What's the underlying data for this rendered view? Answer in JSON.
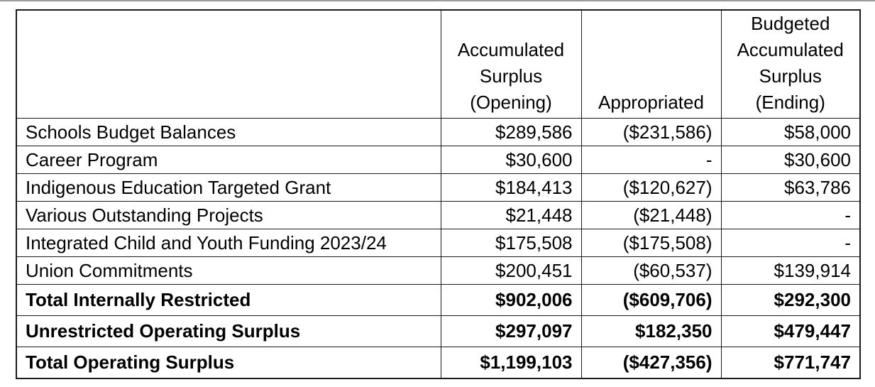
{
  "table": {
    "headers": {
      "label": "",
      "opening": "Accumulated Surplus (Opening)",
      "appropriated": "Appropriated",
      "ending": "Budgeted Accumulated Surplus (Ending)"
    },
    "rows": [
      {
        "label": "Schools Budget Balances",
        "opening": "$289,586",
        "appropriated": "($231,586)",
        "ending": "$58,000"
      },
      {
        "label": "Career Program",
        "opening": "$30,600",
        "appropriated": "-",
        "ending": "$30,600"
      },
      {
        "label": "Indigenous Education Targeted Grant",
        "opening": "$184,413",
        "appropriated": "($120,627)",
        "ending": "$63,786"
      },
      {
        "label": "Various Outstanding Projects",
        "opening": "$21,448",
        "appropriated": "($21,448)",
        "ending": "-"
      },
      {
        "label": "Integrated Child and Youth Funding 2023/24",
        "opening": "$175,508",
        "appropriated": "($175,508)",
        "ending": "-"
      },
      {
        "label": "Union Commitments",
        "opening": "$200,451",
        "appropriated": "($60,537)",
        "ending": "$139,914"
      },
      {
        "label": "Total Internally Restricted",
        "opening": "$902,006",
        "appropriated": "($609,706)",
        "ending": "$292,300"
      },
      {
        "label": "Unrestricted Operating Surplus",
        "opening": "$297,097",
        "appropriated": "$182,350",
        "ending": "$479,447"
      },
      {
        "label": "Total Operating Surplus",
        "opening": "$1,199,103",
        "appropriated": "($427,356)",
        "ending": "$771,747"
      }
    ]
  }
}
